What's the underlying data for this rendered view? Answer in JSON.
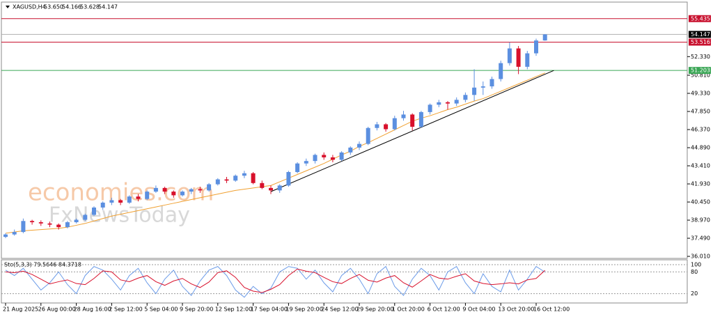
{
  "chart_data": {
    "type": "candlestick",
    "header": {
      "symbol": "XAGUSD,H4",
      "ohlc": [
        "53.650",
        "54.166",
        "53.628",
        "54.147"
      ]
    },
    "watermark": [
      "economies.com",
      "FxNewsToday"
    ],
    "categories": [
      "21 Aug 2025",
      null,
      null,
      null,
      "26 Aug 00:00",
      null,
      null,
      null,
      "28 Aug 16:00",
      null,
      null,
      null,
      "2 Sep 12:00",
      null,
      null,
      null,
      "5 Sep 04:00",
      null,
      null,
      null,
      "9 Sep 20:00",
      null,
      null,
      null,
      "12 Sep 12:00",
      null,
      null,
      null,
      "17 Sep 04:00",
      null,
      null,
      null,
      "19 Sep 20:00",
      null,
      null,
      null,
      "24 Sep 12:00",
      null,
      null,
      null,
      "29 Sep 20:00",
      null,
      null,
      null,
      "1 Oct 20:00",
      null,
      null,
      null,
      "6 Oct 12:00",
      null,
      null,
      null,
      "9 Oct 04:00",
      null,
      null,
      null,
      "13 Oct 20:00",
      null,
      null,
      null,
      "16 Oct 12:00",
      null
    ],
    "up_color": "#5b8fe0",
    "down_color": "#d8102b",
    "candles": [
      [
        37.6,
        37.9,
        37.5,
        37.8
      ],
      [
        37.8,
        38.2,
        37.7,
        38.0
      ],
      [
        38.0,
        39.1,
        37.9,
        38.9
      ],
      [
        38.9,
        39.0,
        38.6,
        38.8
      ],
      [
        38.8,
        38.95,
        38.5,
        38.7
      ],
      [
        38.7,
        38.85,
        38.4,
        38.6
      ],
      [
        38.6,
        38.7,
        38.2,
        38.4
      ],
      [
        38.4,
        38.9,
        38.3,
        38.8
      ],
      [
        38.8,
        39.1,
        38.7,
        39.0
      ],
      [
        39.0,
        39.5,
        38.9,
        39.4
      ],
      [
        39.4,
        40.1,
        39.3,
        40.0
      ],
      [
        40.0,
        40.5,
        39.8,
        40.4
      ],
      [
        40.4,
        40.8,
        40.2,
        40.6
      ],
      [
        40.6,
        40.7,
        40.2,
        40.4
      ],
      [
        40.4,
        41.0,
        40.3,
        40.9
      ],
      [
        40.9,
        41.1,
        40.5,
        40.7
      ],
      [
        40.7,
        41.4,
        40.6,
        41.3
      ],
      [
        41.3,
        41.8,
        41.2,
        41.6
      ],
      [
        41.6,
        41.7,
        41.1,
        41.3
      ],
      [
        41.3,
        41.4,
        40.8,
        41.0
      ],
      [
        41.0,
        41.4,
        40.9,
        41.3
      ],
      [
        41.3,
        41.6,
        41.1,
        41.5
      ],
      [
        41.5,
        41.7,
        41.2,
        41.4
      ],
      [
        41.4,
        42.0,
        41.3,
        41.9
      ],
      [
        41.9,
        42.4,
        41.8,
        42.3
      ],
      [
        42.3,
        42.5,
        42.0,
        42.2
      ],
      [
        42.2,
        42.7,
        42.1,
        42.6
      ],
      [
        42.6,
        43.0,
        42.4,
        42.8
      ],
      [
        42.8,
        42.9,
        41.9,
        42.0
      ],
      [
        42.0,
        42.2,
        41.5,
        41.6
      ],
      [
        41.6,
        41.8,
        41.1,
        41.4
      ],
      [
        41.4,
        41.9,
        41.2,
        41.8
      ],
      [
        41.8,
        43.0,
        41.7,
        42.9
      ],
      [
        42.9,
        43.7,
        42.8,
        43.6
      ],
      [
        43.6,
        44.0,
        43.4,
        43.8
      ],
      [
        43.8,
        44.4,
        43.6,
        44.3
      ],
      [
        44.3,
        44.5,
        43.9,
        44.1
      ],
      [
        44.1,
        44.3,
        43.7,
        43.9
      ],
      [
        43.9,
        44.6,
        43.8,
        44.5
      ],
      [
        44.5,
        45.0,
        44.3,
        44.9
      ],
      [
        44.9,
        45.4,
        44.7,
        45.2
      ],
      [
        45.2,
        46.6,
        45.1,
        46.5
      ],
      [
        46.5,
        47.0,
        46.3,
        46.8
      ],
      [
        46.8,
        46.9,
        46.2,
        46.4
      ],
      [
        46.4,
        47.5,
        46.3,
        47.3
      ],
      [
        47.3,
        47.9,
        47.1,
        47.6
      ],
      [
        47.6,
        47.7,
        46.3,
        46.6
      ],
      [
        46.6,
        47.9,
        46.5,
        47.8
      ],
      [
        47.8,
        48.5,
        47.6,
        48.4
      ],
      [
        48.4,
        48.8,
        48.2,
        48.6
      ],
      [
        48.6,
        48.7,
        48.0,
        48.5
      ],
      [
        48.5,
        49.0,
        48.3,
        48.8
      ],
      [
        48.8,
        49.4,
        48.6,
        49.2
      ],
      [
        49.2,
        51.3,
        48.7,
        49.8
      ],
      [
        49.8,
        50.3,
        49.2,
        49.9
      ],
      [
        49.9,
        50.7,
        49.7,
        50.5
      ],
      [
        50.5,
        52.0,
        50.3,
        51.8
      ],
      [
        51.8,
        53.5,
        51.6,
        53.0
      ],
      [
        53.0,
        53.2,
        50.9,
        51.5
      ],
      [
        51.5,
        52.8,
        51.3,
        52.6
      ],
      [
        52.6,
        53.8,
        52.4,
        53.65
      ],
      [
        53.65,
        54.166,
        53.628,
        54.147
      ]
    ],
    "ma": {
      "color": "#f0a030",
      "values": [
        37.9,
        38.0,
        38.1,
        38.15,
        38.2,
        38.25,
        38.3,
        38.4,
        38.55,
        38.7,
        38.9,
        39.1,
        39.3,
        39.45,
        39.6,
        39.75,
        39.9,
        40.05,
        40.2,
        40.35,
        40.5,
        40.65,
        40.8,
        40.95,
        41.1,
        41.25,
        41.4,
        41.5,
        41.6,
        41.7,
        41.8,
        42.1,
        42.4,
        42.7,
        43.0,
        43.3,
        43.6,
        43.95,
        44.3,
        44.6,
        45.0,
        45.3,
        45.65,
        46.0,
        46.35,
        46.7,
        47.05,
        47.3,
        47.5,
        47.75,
        48.0,
        48.2,
        48.45,
        48.7,
        48.9,
        49.2,
        49.5,
        49.8,
        50.1,
        50.4,
        50.7,
        51.0
      ]
    },
    "trendline": {
      "x": [
        30,
        62
      ],
      "y": [
        41.3,
        51.2
      ],
      "color": "#000000"
    },
    "levels": [
      {
        "value": 55.435,
        "color": "#c8102e"
      },
      {
        "value": 54.147,
        "color": "#b0b0b0"
      },
      {
        "value": 53.516,
        "color": "#c8102e"
      },
      {
        "value": 51.203,
        "color": "#3aa655"
      }
    ],
    "ylim": [
      35.9,
      56.73
    ],
    "yticks": [
      {
        "value": 36.01,
        "label": "36.010"
      },
      {
        "value": 37.49,
        "label": "37.490"
      },
      {
        "value": 38.97,
        "label": "38.970"
      },
      {
        "value": 40.45,
        "label": "40.450"
      },
      {
        "value": 41.93,
        "label": "41.930"
      },
      {
        "value": 43.41,
        "label": "43.410"
      },
      {
        "value": 44.89,
        "label": "44.890"
      },
      {
        "value": 46.37,
        "label": "46.370"
      },
      {
        "value": 47.85,
        "label": "47.850"
      },
      {
        "value": 49.33,
        "label": "49.330"
      },
      {
        "value": 50.81,
        "label": "50.810"
      },
      {
        "value": 52.33,
        "label": "52.330"
      }
    ],
    "stochastic": {
      "title": "Sto(5,3,3) 79.5646 84.3718",
      "ylim": [
        0,
        100
      ],
      "yticks": [
        100,
        80,
        20
      ],
      "series": [
        {
          "color": "#6b9be8",
          "values": [
            85,
            70,
            90,
            60,
            30,
            50,
            80,
            45,
            20,
            70,
            95,
            85,
            60,
            30,
            70,
            90,
            50,
            20,
            60,
            85,
            40,
            15,
            55,
            85,
            95,
            70,
            30,
            10,
            40,
            20,
            35,
            80,
            95,
            90,
            60,
            85,
            50,
            25,
            70,
            90,
            60,
            20,
            75,
            95,
            40,
            15,
            60,
            90,
            70,
            30,
            80,
            95,
            50,
            20,
            75,
            40,
            25,
            85,
            30,
            60,
            95,
            79.5646
          ]
        },
        {
          "color": "#d8102b",
          "values": [
            80,
            78,
            82,
            73,
            60,
            47,
            53,
            58,
            48,
            45,
            62,
            83,
            80,
            58,
            53,
            63,
            70,
            53,
            43,
            55,
            62,
            47,
            37,
            52,
            78,
            83,
            65,
            37,
            27,
            23,
            32,
            45,
            70,
            88,
            82,
            78,
            65,
            53,
            48,
            62,
            73,
            57,
            52,
            63,
            70,
            50,
            38,
            55,
            73,
            63,
            60,
            68,
            75,
            55,
            48,
            45,
            47,
            50,
            47,
            58,
            62,
            84.3718
          ]
        }
      ]
    }
  }
}
